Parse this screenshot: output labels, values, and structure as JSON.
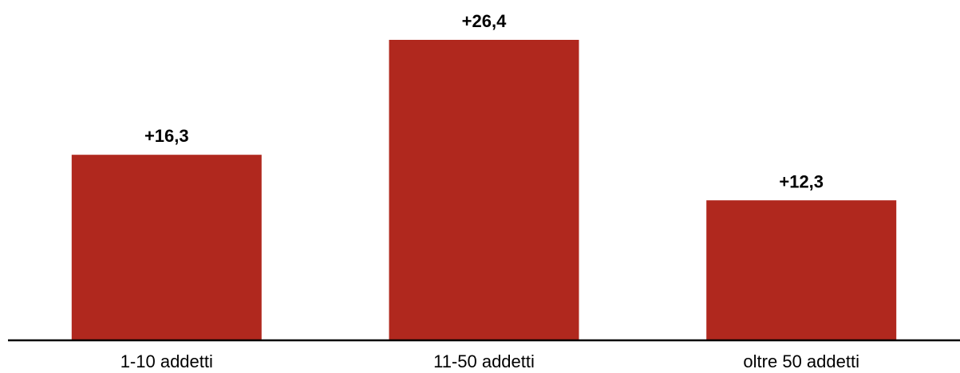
{
  "chart_data": {
    "type": "bar",
    "categories": [
      "1-10 addetti",
      "11-50 addetti",
      "oltre 50 addetti"
    ],
    "values": [
      16.3,
      26.4,
      12.3
    ],
    "data_labels": [
      "+16,3",
      "+26,4",
      "+12,3"
    ],
    "title": "",
    "xlabel": "",
    "ylabel": "",
    "ylim": [
      0,
      28.5
    ],
    "grid": false,
    "legend": "none",
    "bar_color": "#B0281E",
    "axis_color": "#000000"
  }
}
